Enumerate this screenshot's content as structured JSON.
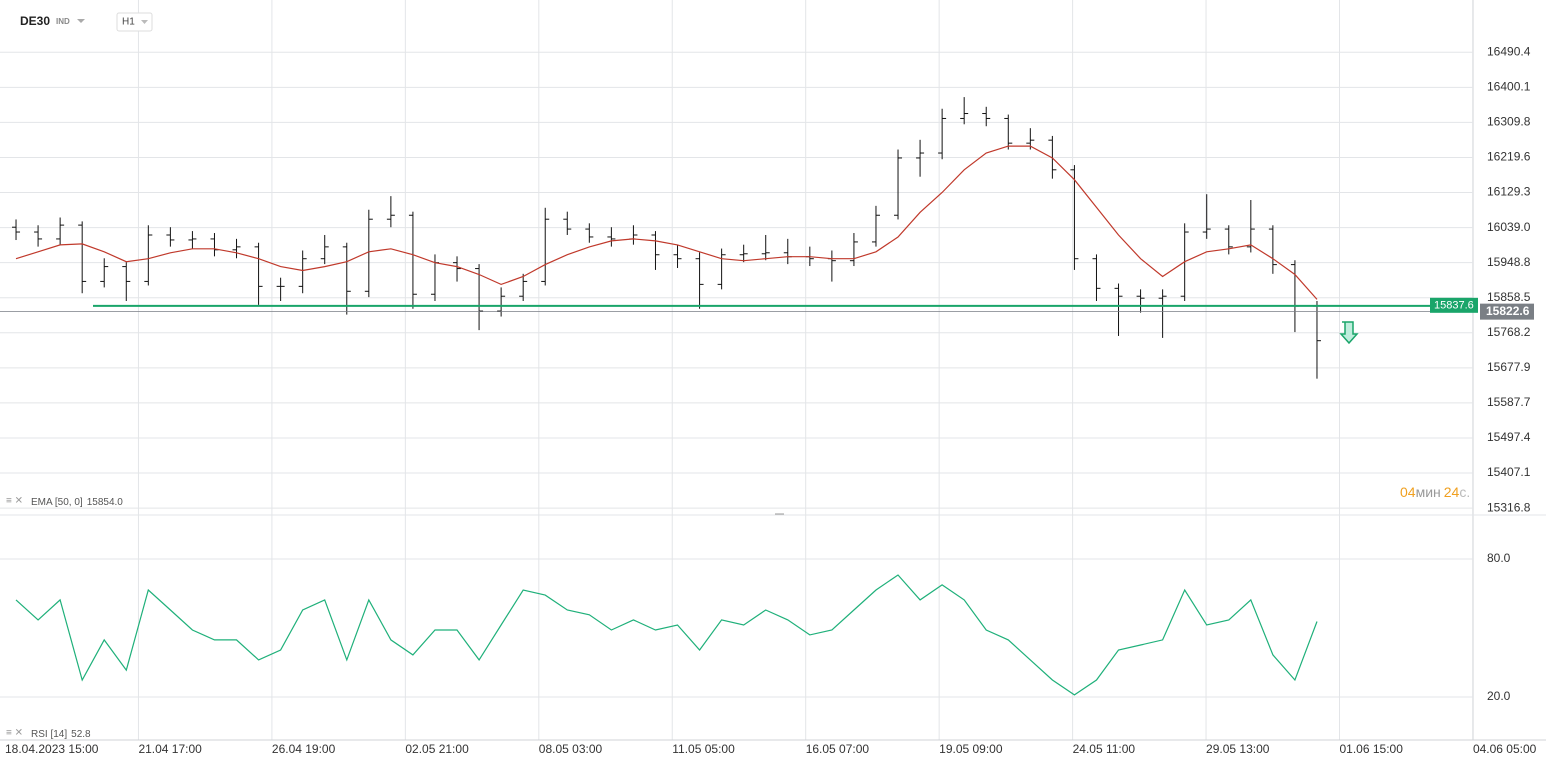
{
  "header": {
    "symbol": "DE30",
    "market": "IND",
    "timeframe": "H1",
    "timer": {
      "minutes": "04",
      "min_unit": "мин",
      "seconds": "24",
      "sec_unit": "с."
    }
  },
  "x_labels": [
    "18.04.2023 15:00",
    "21.04 17:00",
    "26.04 19:00",
    "02.05 21:00",
    "08.05 03:00",
    "11.05 05:00",
    "16.05 07:00",
    "19.05 09:00",
    "24.05 11:00",
    "29.05 13:00",
    "01.06 15:00",
    "04.06 05:00"
  ],
  "chart_data": [
    {
      "type": "ohlc",
      "color": "#111111",
      "ylim": [
        15299,
        16625
      ],
      "yticks": [
        16490.4,
        16400.1,
        16309.8,
        16219.6,
        16129.3,
        {
          "value": 16039,
          "label": "16039.0"
        },
        15948.8,
        15858.5,
        15768.2,
        15677.9,
        15587.7,
        15497.4,
        15407.1,
        15316.8
      ],
      "open": [
        16040,
        16027.6,
        16009.8,
        16045.4,
        15900.4,
        15938.6,
        15900.4,
        16019.9,
        16007.2,
        16009.8,
        15981.8,
        15989.4,
        15887.7,
        15887.7,
        15958.9,
        15989.4,
        15875.0,
        16060.6,
        16070.8,
        15867.4,
        15948.7,
        15933.5,
        15824.1,
        15862.3,
        15900.4,
        16060.6,
        16035.2,
        16014.9,
        16009.8,
        16019.9,
        15969.1,
        15958.9,
        15892.8,
        15969.1,
        15971.6,
        15974.2,
        15964.0,
        15958.9,
        15953.8,
        16002.1,
        16070.8,
        16218.3,
        16231.0,
        16320.0,
        16332.7,
        16320.0,
        16256.4,
        16264.1,
        16187.8,
        15958.9,
        15882.6,
        15862.3,
        15857.2,
        15862.3,
        16027.6,
        16035.2,
        15989.4,
        16035.2,
        15943.7,
        15836.8
      ],
      "high": [
        16060,
        16045,
        16065,
        16055,
        15960,
        15950,
        16045,
        16040,
        16030,
        16025,
        16010,
        16000,
        15910,
        15980,
        16020,
        16000,
        16085,
        16120,
        16080,
        15970,
        15965,
        15945,
        15885,
        15920,
        16090,
        16080,
        16050,
        16040,
        16045,
        16030,
        15995,
        15975,
        15985,
        15995,
        16020,
        16010,
        15990,
        15980,
        16025,
        16095,
        16240,
        16265,
        16345,
        16375,
        16350,
        16330,
        16295,
        16275,
        16200,
        15970,
        15895,
        15880,
        15880,
        16050,
        16125,
        16045,
        16110,
        16045,
        15955,
        15850
      ],
      "low": [
        16007,
        15990,
        15995,
        15870,
        15885,
        15850,
        15890,
        15990,
        15985,
        15965,
        15960,
        15840,
        15850,
        15870,
        15945,
        15815,
        15860,
        16040,
        15830,
        15850,
        15900,
        15775,
        15810,
        15850,
        15890,
        16020,
        16000,
        15990,
        15995,
        15930,
        15935,
        15830,
        15880,
        15950,
        15955,
        15945,
        15940,
        15900,
        15940,
        15990,
        16060,
        16170,
        16215,
        16305,
        16300,
        16240,
        16240,
        16165,
        15930,
        15850,
        15760,
        15820,
        15755,
        15850,
        16010,
        15970,
        15975,
        15920,
        15770,
        15650
      ],
      "close": [
        16027.6,
        16009.8,
        16045.4,
        15900.4,
        15938.6,
        15900.4,
        16019.9,
        16007.2,
        16009.8,
        15981.8,
        15989.4,
        15887.7,
        15887.7,
        15958.9,
        15989.4,
        15875.0,
        16060.6,
        16070.8,
        15867.4,
        15948.7,
        15933.5,
        15824.1,
        15862.3,
        15900.4,
        16060.6,
        16035.2,
        16014.9,
        16009.8,
        16019.9,
        15969.1,
        15958.9,
        15892.8,
        15969.1,
        15971.6,
        15974.2,
        15964.0,
        15958.9,
        15953.8,
        16002.1,
        16070.8,
        16218.3,
        16231.0,
        16320.0,
        16332.7,
        16320.0,
        16256.4,
        16264.1,
        16187.8,
        15958.9,
        15882.6,
        15862.3,
        15857.2,
        15862.3,
        16027.6,
        16035.2,
        15989.4,
        16035.2,
        15943.7,
        15836.8,
        15747.8
      ],
      "ema": {
        "color": "#c0392b",
        "legend": "EMA [50, 0]",
        "value_label": "15854.0",
        "values": [
          15958.9,
          15976.7,
          15994.5,
          15997.1,
          15976.7,
          15951.3,
          15958.9,
          15974.2,
          15984.3,
          15984.3,
          15974.2,
          15958.9,
          15938.6,
          15928.4,
          15938.6,
          15951.3,
          15976.7,
          15984.3,
          15969.1,
          15948.7,
          15938.6,
          15918.2,
          15892.8,
          15913.1,
          15943.7,
          15969.1,
          15989.4,
          16004.7,
          16009.8,
          16004.7,
          15994.5,
          15976.7,
          15958.9,
          15953.8,
          15958.9,
          15964.0,
          15964.0,
          15958.9,
          15958.9,
          15976.7,
          16014.9,
          16078.4,
          16129.3,
          16187.8,
          16231.0,
          16248.8,
          16248.8,
          16218.3,
          16162.4,
          16091.1,
          16019.9,
          15958.9,
          15913.1,
          15951.3,
          15976.7,
          15984.3,
          15994.5,
          15958.9,
          15918.2,
          15854.0
        ]
      },
      "level": {
        "value": 15837.6,
        "color": "#1aa56a"
      },
      "current": {
        "value": 15822.6,
        "color": "#7a7f85"
      }
    },
    {
      "type": "line",
      "color": "#1fb07a",
      "legend": "RSI [14]",
      "value_label": "52.8",
      "ylim": [
        1.3,
        99.1
      ],
      "yticks": [
        {
          "value": 80,
          "label": "80.0"
        },
        {
          "value": 20,
          "label": "20.0"
        }
      ],
      "values": [
        62.2,
        53.5,
        62.2,
        27.4,
        44.8,
        31.7,
        66.5,
        57.8,
        49.1,
        44.8,
        44.8,
        36.1,
        40.4,
        57.8,
        62.2,
        36.1,
        62.2,
        44.8,
        38.3,
        49.1,
        49.1,
        36.1,
        51.3,
        66.5,
        64.3,
        57.8,
        55.7,
        49.1,
        53.5,
        49.1,
        51.3,
        40.4,
        53.5,
        51.3,
        57.8,
        53.5,
        47.0,
        49.1,
        57.8,
        66.5,
        73.0,
        62.2,
        68.7,
        62.2,
        49.1,
        44.8,
        36.1,
        27.4,
        20.9,
        27.4,
        40.4,
        42.6,
        44.8,
        66.5,
        51.3,
        53.5,
        62.2,
        38.3,
        27.4,
        52.8
      ]
    }
  ]
}
